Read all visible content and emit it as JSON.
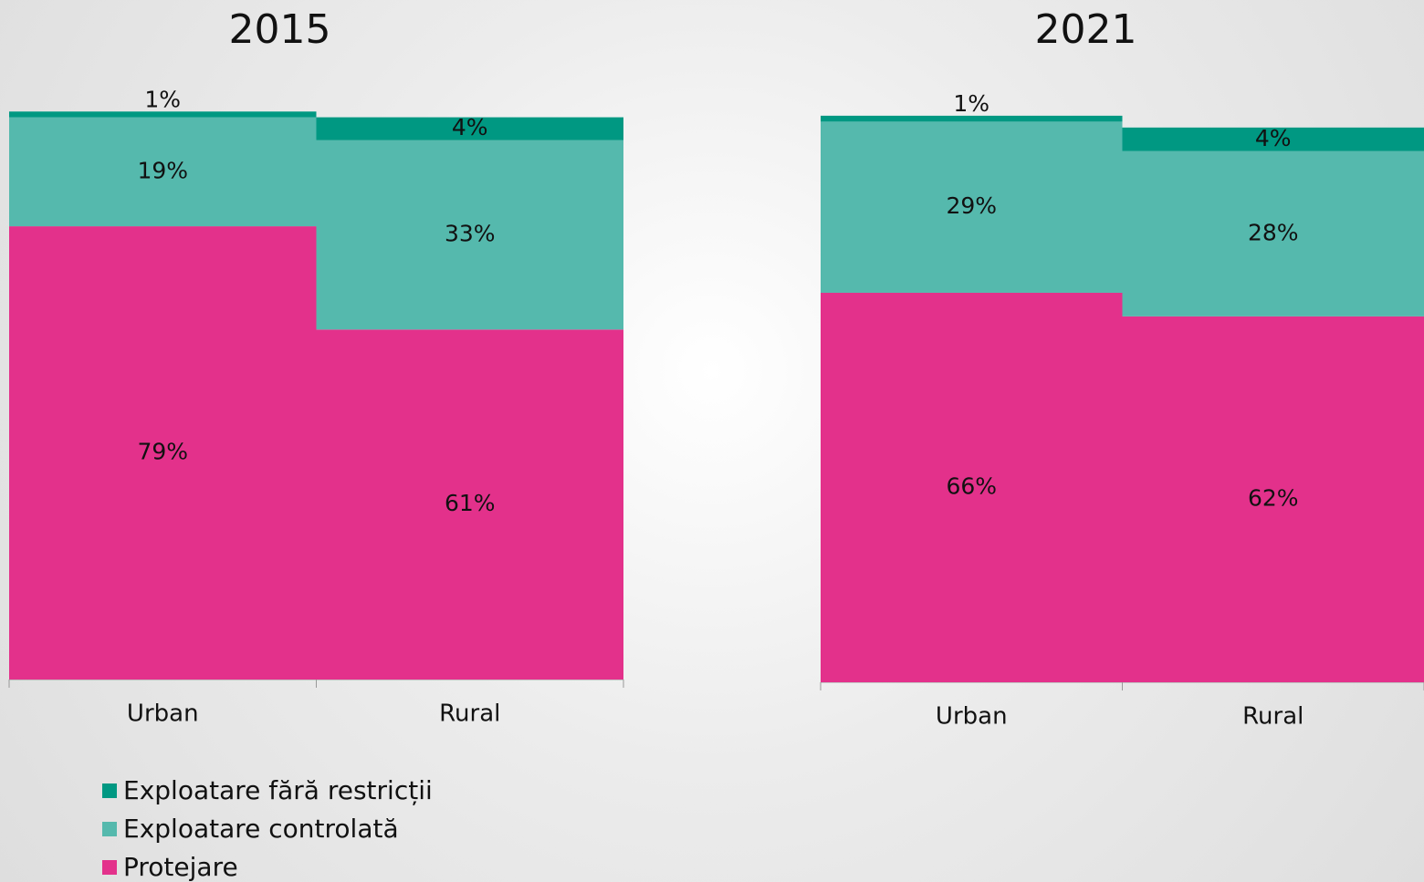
{
  "chart_data": [
    {
      "type": "stacked_bar",
      "title": "2015",
      "categories": [
        "Urban",
        "Rural"
      ],
      "ylim": [
        0,
        100
      ],
      "series": [
        {
          "name": "Protejare",
          "color": "#e3318b",
          "values": [
            79,
            61
          ],
          "value_labels": [
            "79%",
            "61%"
          ]
        },
        {
          "name": "Exploatare controlată",
          "color": "#55b9ad",
          "values": [
            19,
            33
          ],
          "value_labels": [
            "19%",
            "33%"
          ]
        },
        {
          "name": "Exploatare fără restricții",
          "color": "#009882",
          "values": [
            1,
            4
          ],
          "value_labels": [
            "1%",
            "4%"
          ]
        }
      ]
    },
    {
      "type": "stacked_bar",
      "title": "2021",
      "categories": [
        "Urban",
        "Rural"
      ],
      "ylim": [
        0,
        100
      ],
      "series": [
        {
          "color": "#e3318b",
          "values": [
            66,
            62
          ],
          "value_labels": [
            "66%",
            "62%"
          ]
        },
        {
          "color": "#55b9ad",
          "values": [
            29,
            28
          ],
          "value_labels": [
            "29%",
            "28%"
          ]
        },
        {
          "color": "#009882",
          "values": [
            1,
            4
          ],
          "value_labels": [
            "1%",
            "4%"
          ]
        }
      ]
    }
  ]
}
